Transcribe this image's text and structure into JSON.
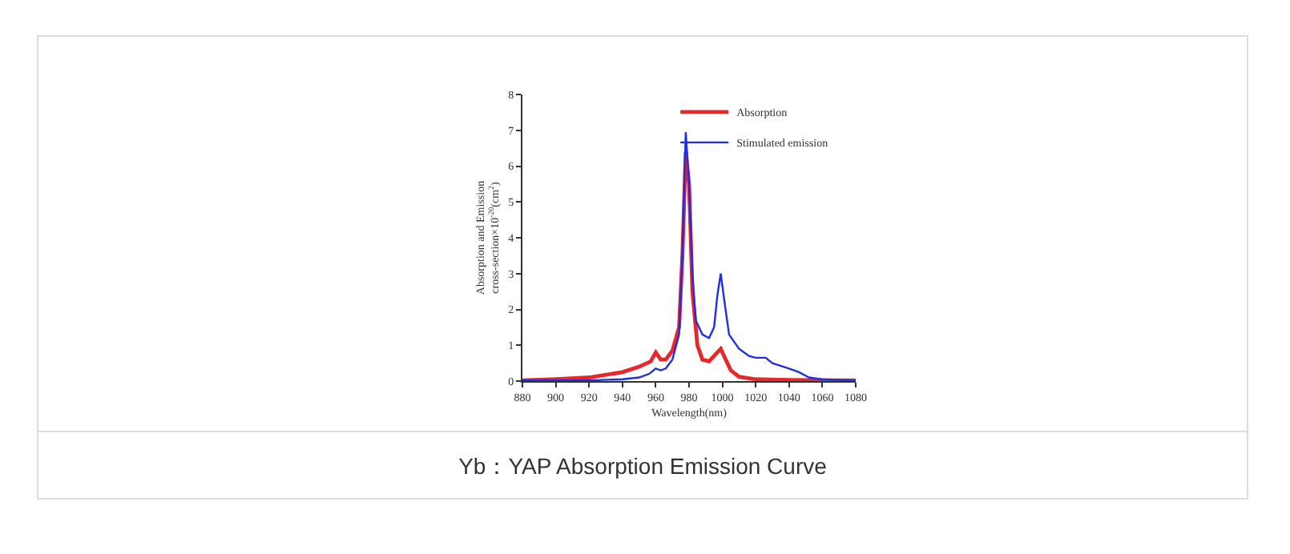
{
  "chart_data": {
    "type": "line",
    "title": "Yb：YAP Absorption Emission Curve",
    "xlabel": "Wavelength(nm)",
    "ylabel": "Absorption and Emission\ncross-section×10$^{-20}$(cm$^{2}$)",
    "xlim": [
      880,
      1080
    ],
    "xticks": [
      880,
      900,
      920,
      940,
      960,
      980,
      1000,
      1020,
      1040,
      1060,
      1080
    ],
    "ylim": [
      0,
      8
    ],
    "yticks": [
      0,
      1,
      2,
      3,
      4,
      5,
      6,
      7,
      8
    ],
    "grid": false,
    "legend": "top right",
    "line_style": "solid",
    "marker": "none",
    "series": [
      {
        "name": "Absorption",
        "color": "#e8272a",
        "x": [
          880,
          900,
          920,
          940,
          950,
          957,
          960,
          963,
          966,
          970,
          974,
          976,
          978,
          980,
          982,
          985,
          988,
          992,
          996,
          999,
          1002,
          1005,
          1010,
          1020,
          1040,
          1060,
          1080
        ],
        "values": [
          0.02,
          0.05,
          0.1,
          0.25,
          0.4,
          0.55,
          0.8,
          0.6,
          0.6,
          0.85,
          1.5,
          3.5,
          6.4,
          5.5,
          2.5,
          1.0,
          0.6,
          0.55,
          0.75,
          0.9,
          0.6,
          0.3,
          0.12,
          0.05,
          0.03,
          0.02,
          0.02
        ]
      },
      {
        "name": "Stimulated emission",
        "color": "#1f2ee6",
        "x": [
          880,
          920,
          940,
          950,
          956,
          960,
          963,
          966,
          970,
          974,
          976,
          978,
          980,
          982,
          984,
          988,
          992,
          995,
          997,
          999,
          1001,
          1004,
          1010,
          1016,
          1020,
          1026,
          1030,
          1040,
          1046,
          1052,
          1060,
          1080
        ],
        "values": [
          0.02,
          0.02,
          0.05,
          0.1,
          0.2,
          0.35,
          0.3,
          0.35,
          0.6,
          1.3,
          3.5,
          6.95,
          5.5,
          3.0,
          1.7,
          1.3,
          1.2,
          1.5,
          2.4,
          3.0,
          2.3,
          1.3,
          0.9,
          0.7,
          0.65,
          0.65,
          0.5,
          0.35,
          0.25,
          0.1,
          0.05,
          0.02
        ]
      }
    ]
  }
}
